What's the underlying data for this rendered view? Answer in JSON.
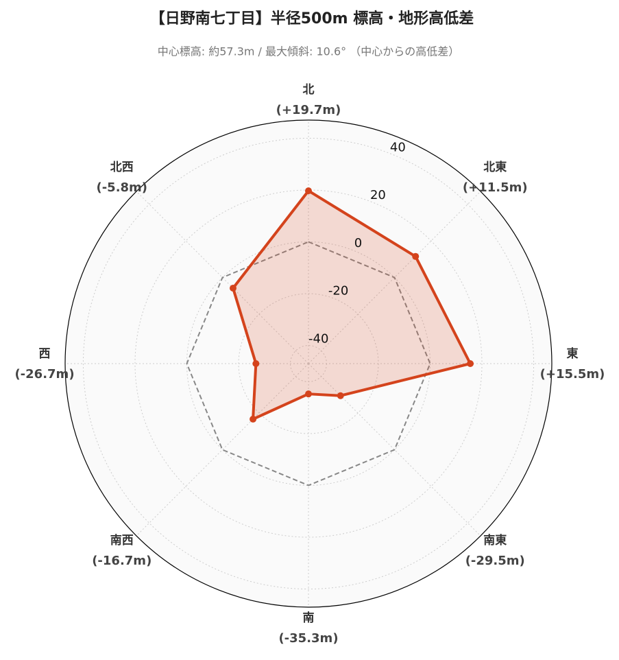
{
  "chart_data": {
    "type": "radar",
    "title": "【日野南七丁目】半径500m 標高・地形高低差",
    "subtitle": "中心標高: 約57.3m / 最大傾斜: 10.6° （中心からの高低差）",
    "categories": [
      "北",
      "北東",
      "東",
      "南東",
      "南",
      "南西",
      "西",
      "北西"
    ],
    "series": [
      {
        "values": [
          19.7,
          11.5,
          15.5,
          -29.5,
          -35.3,
          -16.7,
          -26.7,
          -5.8
        ],
        "color": "#d4431c",
        "value_labels": [
          "(+19.7m)",
          "(+11.5m)",
          "(+15.5m)",
          "(-29.5m)",
          "(-35.3m)",
          "(-16.7m)",
          "(-26.7m)",
          "(-5.8m)"
        ]
      }
    ],
    "baseline": 0,
    "rlim": [
      -47,
      47
    ],
    "rticks": [
      -40,
      -20,
      0,
      20,
      40
    ],
    "grid": true
  }
}
